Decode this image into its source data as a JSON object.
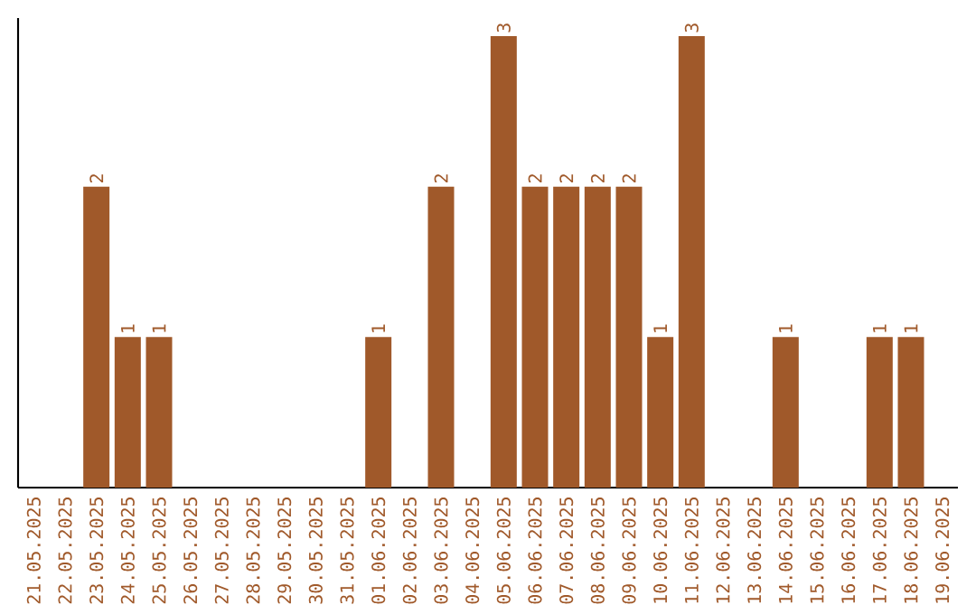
{
  "chart_data": {
    "type": "bar",
    "color": "#a0592a",
    "categories": [
      "21.05.2025",
      "22.05.2025",
      "23.05.2025",
      "24.05.2025",
      "25.05.2025",
      "26.05.2025",
      "27.05.2025",
      "28.05.2025",
      "29.05.2025",
      "30.05.2025",
      "31.05.2025",
      "01.06.2025",
      "02.06.2025",
      "03.06.2025",
      "04.06.2025",
      "05.06.2025",
      "06.06.2025",
      "07.06.2025",
      "08.06.2025",
      "09.06.2025",
      "10.06.2025",
      "11.06.2025",
      "12.06.2025",
      "13.06.2025",
      "14.06.2025",
      "15.06.2025",
      "16.06.2025",
      "17.06.2025",
      "18.06.2025",
      "19.06.2025"
    ],
    "values": [
      0,
      0,
      2,
      1,
      1,
      0,
      0,
      0,
      0,
      0,
      0,
      1,
      0,
      2,
      0,
      3,
      2,
      2,
      2,
      2,
      1,
      3,
      0,
      0,
      1,
      0,
      0,
      1,
      1,
      0
    ],
    "value_labels": [
      null,
      null,
      "2",
      "1",
      "1",
      null,
      null,
      null,
      null,
      null,
      null,
      "1",
      null,
      "2",
      null,
      "3",
      "2",
      "2",
      "2",
      "2",
      "1",
      "3",
      null,
      null,
      "1",
      null,
      null,
      "1",
      "1",
      null
    ],
    "data_labels": false
  }
}
